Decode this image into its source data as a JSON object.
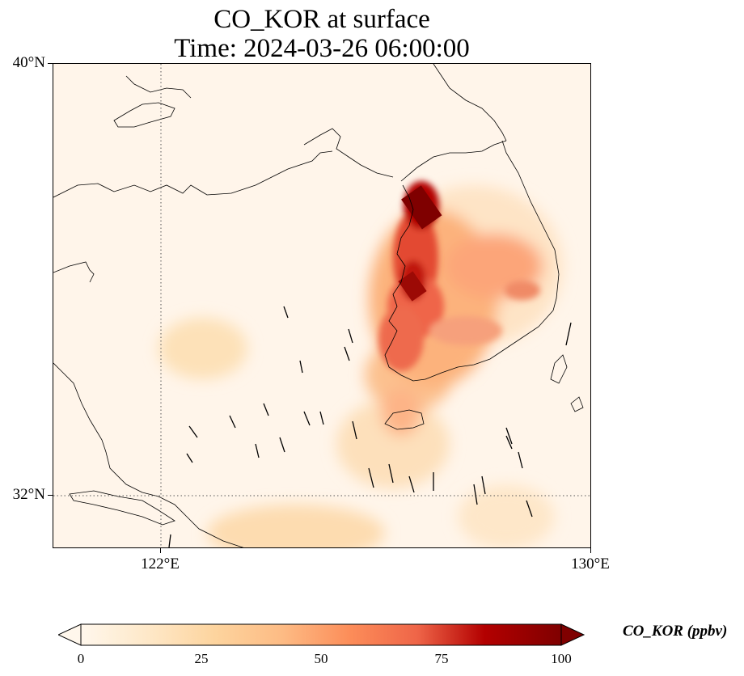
{
  "title": "CO_KOR at surface",
  "subtitle": "Time: 2024-03-26 06:00:00",
  "map": {
    "variable": "CO_KOR",
    "level": "surface",
    "extent": {
      "lon": [
        120,
        130
      ],
      "lat": [
        31,
        40
      ]
    },
    "lat_ticks": [
      {
        "value": 40,
        "label": "40°N"
      },
      {
        "value": 32,
        "label": "32°N"
      }
    ],
    "lon_ticks": [
      {
        "value": 122,
        "label": "122°E"
      },
      {
        "value": 130,
        "label": "130°E"
      }
    ],
    "gridlines": {
      "lat": [
        32
      ],
      "lon": [
        122
      ]
    },
    "plume_color": "#7f0000",
    "coastline_color": "#000000"
  },
  "colorbar": {
    "label": "CO_KOR (ppbv)",
    "min": 0,
    "max": 100,
    "ticks": [
      {
        "value": 0,
        "label": "0"
      },
      {
        "value": 25,
        "label": "25"
      },
      {
        "value": 50,
        "label": "50"
      },
      {
        "value": 75,
        "label": "75"
      },
      {
        "value": 100,
        "label": "100"
      }
    ],
    "colors": [
      "#fff7ec",
      "#fdd49e",
      "#fdbb84",
      "#fc8d59",
      "#ef6548",
      "#d7301f",
      "#b30000",
      "#7f0000"
    ],
    "extend": "both"
  }
}
